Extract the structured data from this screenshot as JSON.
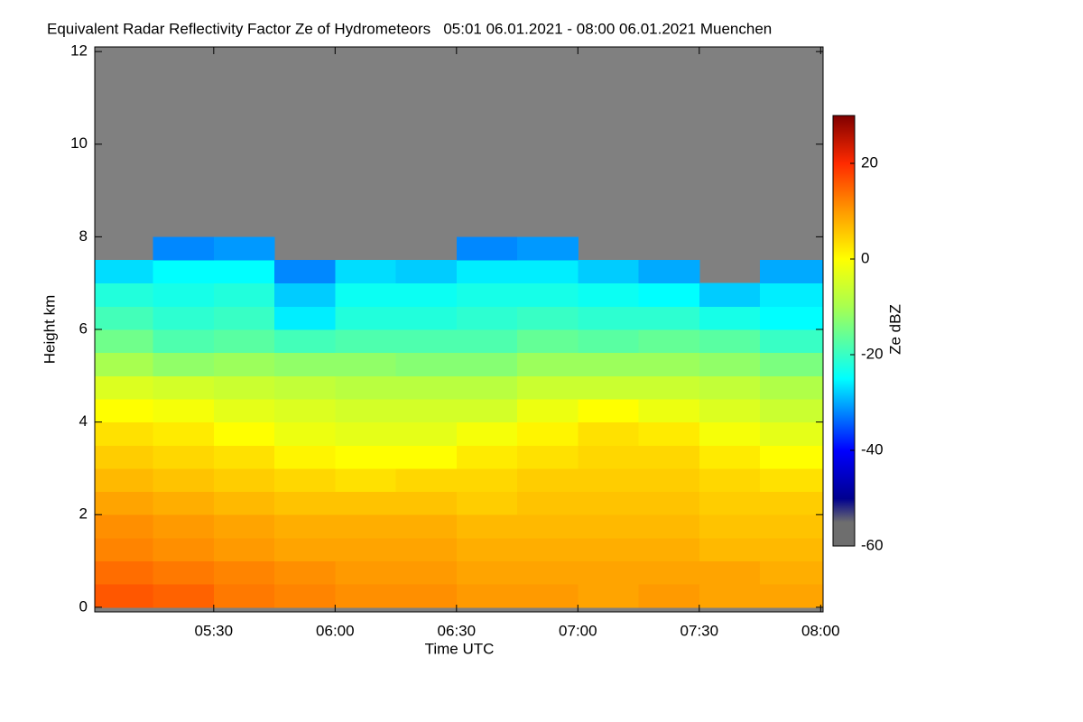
{
  "chart_data": {
    "type": "heatmap",
    "title": "Equivalent Radar Reflectivity Factor Ze of Hydrometeors   05:01 06.01.2021 - 08:00 06.01.2021 Muenchen",
    "x_label": "Time UTC",
    "y_label": "Height km",
    "colorbar_label": "Ze dBZ",
    "xlim": [
      5.01,
      8.01
    ],
    "xticks": [
      {
        "value": 5.5,
        "label": "05:30"
      },
      {
        "value": 6,
        "label": "06:00"
      },
      {
        "value": 6.5,
        "label": "06:30"
      },
      {
        "value": 7,
        "label": "07:00"
      },
      {
        "value": 7.5,
        "label": "07:30"
      },
      {
        "value": 8,
        "label": "08:00"
      }
    ],
    "ylim": [
      -0.1,
      12.1
    ],
    "yticks": [
      0,
      2,
      4,
      6,
      8,
      10,
      12
    ],
    "zlim": [
      -60,
      30
    ],
    "zticks": [
      -60,
      -40,
      -20,
      0,
      20
    ],
    "no_signal_color": "#808080",
    "x_edges": [
      5.01,
      5.25,
      5.5,
      5.75,
      6,
      6.25,
      6.5,
      6.75,
      7,
      7.25,
      7.5,
      7.75,
      8.01
    ],
    "y_edges": [
      0,
      0.5,
      1,
      1.5,
      2,
      2.5,
      3,
      3.5,
      4,
      4.5,
      5,
      5.5,
      6,
      6.5,
      7,
      7.5,
      8
    ],
    "z": [
      [
        16,
        15,
        13,
        12,
        11,
        11,
        10,
        10,
        9,
        10,
        9,
        9
      ],
      [
        14,
        13,
        12,
        11,
        10,
        10,
        9,
        9,
        9,
        9,
        9,
        8
      ],
      [
        12,
        11,
        10,
        9,
        9,
        9,
        8,
        8,
        8,
        8,
        7,
        7
      ],
      [
        11,
        10,
        9,
        8,
        8,
        8,
        7,
        7,
        7,
        7,
        6,
        6
      ],
      [
        9,
        8,
        7,
        6,
        6,
        6,
        5,
        6,
        6,
        6,
        5,
        5
      ],
      [
        7,
        6,
        5,
        4,
        3,
        4,
        4,
        5,
        5,
        5,
        4,
        3
      ],
      [
        5,
        4,
        3,
        1,
        0,
        0,
        2,
        3,
        4,
        4,
        2,
        0
      ],
      [
        3,
        2,
        0,
        -2,
        -3,
        -3,
        -1,
        1,
        3,
        2,
        -1,
        -3
      ],
      [
        0,
        -1,
        -3,
        -4,
        -5,
        -5,
        -5,
        -2,
        0,
        -2,
        -4,
        -6
      ],
      [
        -4,
        -5,
        -6,
        -7,
        -8,
        -8,
        -8,
        -6,
        -6,
        -6,
        -7,
        -9
      ],
      [
        -10,
        -12,
        -11,
        -12,
        -12,
        -13,
        -13,
        -11,
        -11,
        -11,
        -12,
        -14
      ],
      [
        -15,
        -18,
        -17,
        -19,
        -18,
        -18,
        -18,
        -16,
        -17,
        -16,
        -17,
        -20
      ],
      [
        -19,
        -21,
        -20,
        -26,
        -22,
        -22,
        -21,
        -20,
        -21,
        -21,
        -23,
        -25
      ],
      [
        -22,
        -23,
        -22,
        -28,
        -24,
        -24,
        -23,
        -23,
        -24,
        -25,
        -28,
        -26
      ],
      [
        -27,
        -25,
        -25,
        -32,
        -27,
        -28,
        -26,
        -26,
        -28,
        -30,
        null,
        -30
      ],
      [
        null,
        -32,
        -31,
        null,
        null,
        null,
        -32,
        -31,
        null,
        null,
        null,
        null
      ]
    ]
  }
}
